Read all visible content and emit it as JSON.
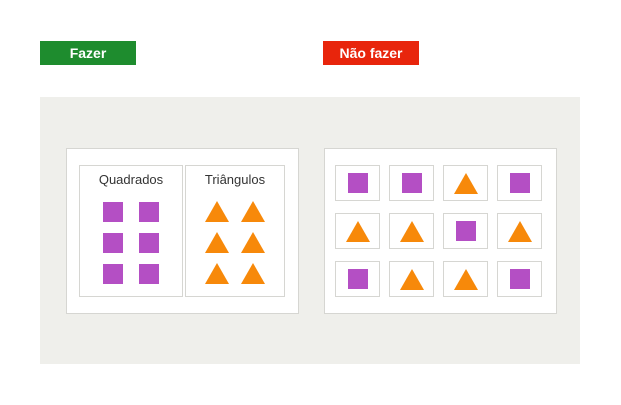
{
  "labels": {
    "do": "Fazer",
    "dont": "Não fazer"
  },
  "colors": {
    "do_badge": "#1e8c2e",
    "dont_badge": "#e8250c",
    "square": "#b44fc4",
    "triangle": "#f7890a"
  },
  "do_panel": {
    "groups": [
      {
        "title": "Quadrados",
        "shape": "square",
        "count": 6
      },
      {
        "title": "Triângulos",
        "shape": "triangle",
        "count": 6
      }
    ]
  },
  "dont_panel": {
    "tiles": [
      "square",
      "square",
      "triangle",
      "square",
      "triangle",
      "triangle",
      "square",
      "triangle",
      "square",
      "triangle",
      "triangle",
      "square"
    ]
  }
}
